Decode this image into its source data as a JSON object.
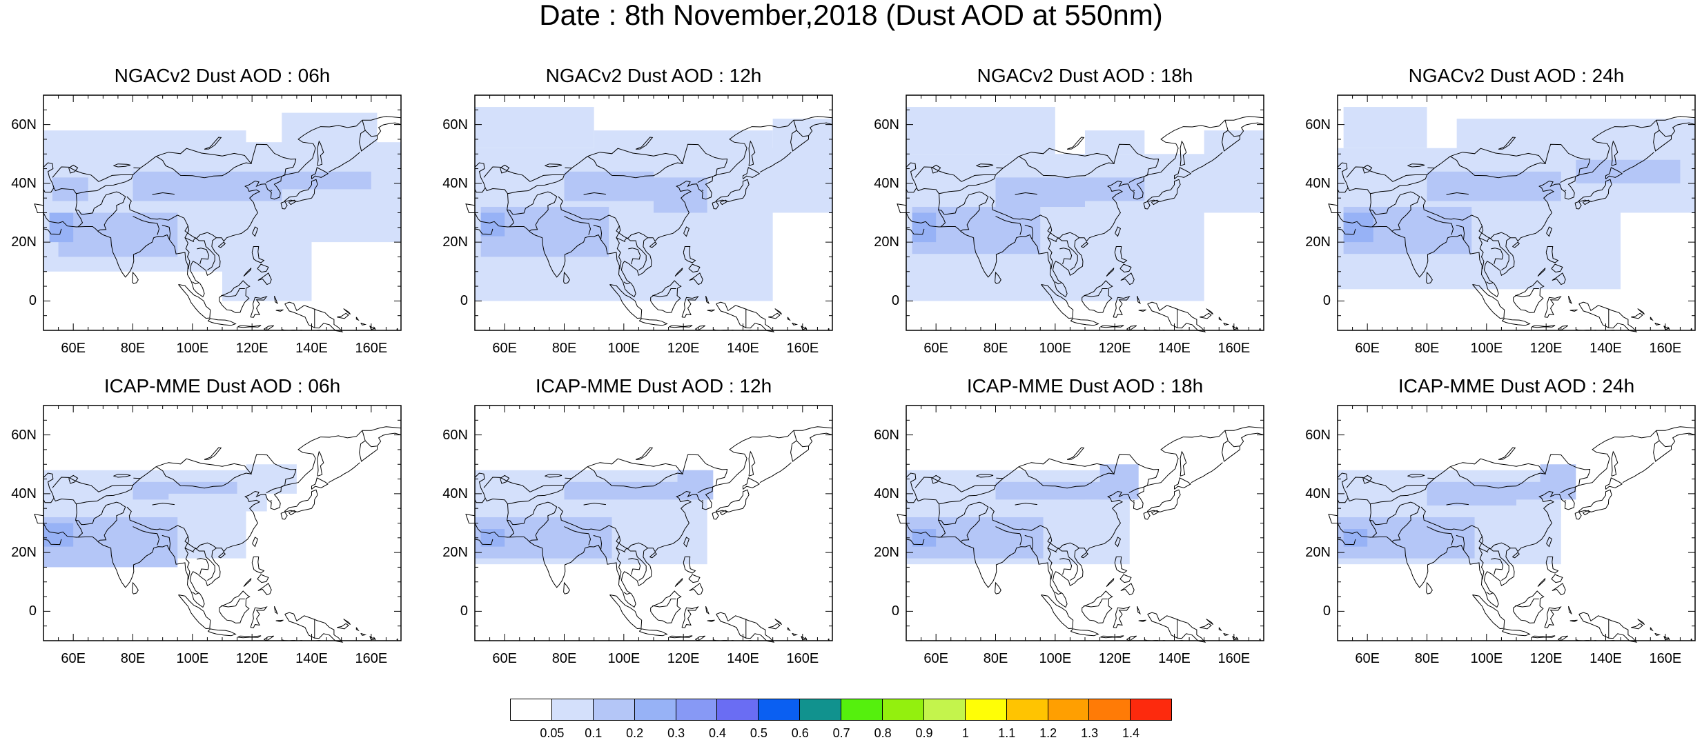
{
  "title": "Date : 8th November,2018 (Dust AOD at 550nm)",
  "lat_ticks": [
    "60N",
    "40N",
    "20N",
    "0"
  ],
  "lon_ticks": [
    "60E",
    "80E",
    "100E",
    "120E",
    "140E",
    "160E"
  ],
  "panels": [
    {
      "title": "NGACv2 Dust AOD : 06h"
    },
    {
      "title": "NGACv2 Dust AOD : 12h"
    },
    {
      "title": "NGACv2 Dust AOD : 18h"
    },
    {
      "title": "NGACv2 Dust AOD : 24h"
    },
    {
      "title": "ICAP-MME Dust AOD : 06h"
    },
    {
      "title": "ICAP-MME Dust AOD : 12h"
    },
    {
      "title": "ICAP-MME Dust AOD : 18h"
    },
    {
      "title": "ICAP-MME Dust AOD : 24h"
    }
  ],
  "colorbar": {
    "colors": [
      "#ffffff",
      "#d4e0fb",
      "#b4c6f7",
      "#97b2f6",
      "#8799f5",
      "#6a6df3",
      "#0a5ff2",
      "#11928e",
      "#55f00d",
      "#93f00e",
      "#c4f44c",
      "#fffe06",
      "#ffc401",
      "#ff9f01",
      "#ff7b06",
      "#fd2a0d"
    ],
    "labels": [
      "0.05",
      "0.1",
      "0.2",
      "0.3",
      "0.4",
      "0.5",
      "0.6",
      "0.7",
      "0.8",
      "0.9",
      "1",
      "1.1",
      "1.2",
      "1.3",
      "1.4"
    ]
  }
}
